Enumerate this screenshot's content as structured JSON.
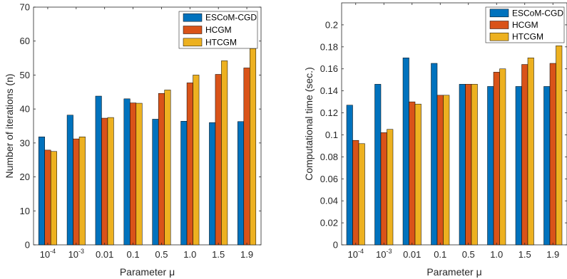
{
  "chart_data": [
    {
      "type": "bar",
      "categories": [
        "10^-4",
        "10^-3",
        "0.01",
        "0.1",
        "0.5",
        "1.0",
        "1.5",
        "1.9"
      ],
      "category_labels": [
        {
          "base": "10",
          "exp": "-4"
        },
        {
          "base": "10",
          "exp": "-3"
        },
        {
          "base": "0.01",
          "exp": ""
        },
        {
          "base": "0.1",
          "exp": ""
        },
        {
          "base": "0.5",
          "exp": ""
        },
        {
          "base": "1.0",
          "exp": ""
        },
        {
          "base": "1.5",
          "exp": ""
        },
        {
          "base": "1.9",
          "exp": ""
        }
      ],
      "series": [
        {
          "name": "ESCoM-CGD",
          "color": "#0072BD",
          "values": [
            31.8,
            38.2,
            43.8,
            43.0,
            37.0,
            36.4,
            36.0,
            36.3
          ]
        },
        {
          "name": "HCGM",
          "color": "#D95319",
          "values": [
            27.9,
            31.2,
            37.3,
            41.8,
            44.6,
            47.7,
            50.2,
            52.1
          ]
        },
        {
          "name": "HTCGM",
          "color": "#EDB120",
          "values": [
            27.5,
            31.8,
            37.5,
            41.7,
            45.6,
            50.0,
            54.2,
            57.8
          ]
        }
      ],
      "xlabel": "Parameter μ",
      "ylabel": "Number of iterations (n)",
      "ylim": [
        0,
        70
      ],
      "yticks": [
        0,
        10,
        20,
        30,
        40,
        50,
        60,
        70
      ],
      "ytick_labels": [
        "0",
        "10",
        "20",
        "30",
        "40",
        "50",
        "60",
        "70"
      ],
      "legend": "top-left-inside",
      "grid": false
    },
    {
      "type": "bar",
      "categories": [
        "10^-4",
        "10^-3",
        "0.01",
        "0.1",
        "0.5",
        "1.0",
        "1.5",
        "1.9"
      ],
      "category_labels": [
        {
          "base": "10",
          "exp": "-4"
        },
        {
          "base": "10",
          "exp": "-3"
        },
        {
          "base": "0.01",
          "exp": ""
        },
        {
          "base": "0.1",
          "exp": ""
        },
        {
          "base": "0.5",
          "exp": ""
        },
        {
          "base": "1.0",
          "exp": ""
        },
        {
          "base": "1.5",
          "exp": ""
        },
        {
          "base": "1.9",
          "exp": ""
        }
      ],
      "series": [
        {
          "name": "ESCoM-CGD",
          "color": "#0072BD",
          "values": [
            0.127,
            0.146,
            0.17,
            0.165,
            0.146,
            0.144,
            0.144,
            0.144
          ]
        },
        {
          "name": "HCGM",
          "color": "#D95319",
          "values": [
            0.095,
            0.102,
            0.13,
            0.136,
            0.146,
            0.157,
            0.164,
            0.165
          ]
        },
        {
          "name": "HTCGM",
          "color": "#EDB120",
          "values": [
            0.092,
            0.105,
            0.128,
            0.136,
            0.146,
            0.16,
            0.17,
            0.181
          ]
        }
      ],
      "xlabel": "Parameter μ",
      "ylabel": "Computational time (sec.)",
      "ylim": [
        0,
        0.22
      ],
      "yticks": [
        0,
        0.02,
        0.04,
        0.06,
        0.08,
        0.1,
        0.12,
        0.14,
        0.16,
        0.18,
        0.2
      ],
      "ytick_labels": [
        "0",
        "0.02",
        "0.04",
        "0.06",
        "0.08",
        "0.1",
        "0.12",
        "0.14",
        "0.16",
        "0.18",
        "0.2"
      ],
      "legend": "top-left-inside",
      "grid": false
    }
  ]
}
